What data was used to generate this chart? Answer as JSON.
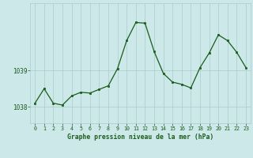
{
  "x": [
    0,
    1,
    2,
    3,
    4,
    5,
    6,
    7,
    8,
    9,
    10,
    11,
    12,
    13,
    14,
    15,
    16,
    17,
    18,
    19,
    20,
    21,
    22,
    23
  ],
  "y": [
    1038.1,
    1038.5,
    1038.1,
    1038.05,
    1038.3,
    1038.4,
    1038.38,
    1038.48,
    1038.58,
    1039.05,
    1039.82,
    1040.32,
    1040.3,
    1039.52,
    1038.92,
    1038.68,
    1038.62,
    1038.52,
    1039.08,
    1039.48,
    1039.98,
    1039.82,
    1039.5,
    1039.08
  ],
  "line_color": "#1a5c1a",
  "marker_color": "#1a5c1a",
  "bg_color": "#cce8e8",
  "grid_color": "#aacccc",
  "tick_color": "#1a5c1a",
  "ytick_labels": [
    "1038",
    "1039"
  ],
  "ytick_values": [
    1038,
    1039
  ],
  "xlabel": "Graphe pression niveau de la mer (hPa)",
  "xlim": [
    -0.5,
    23.5
  ],
  "ylim": [
    1037.55,
    1040.85
  ]
}
